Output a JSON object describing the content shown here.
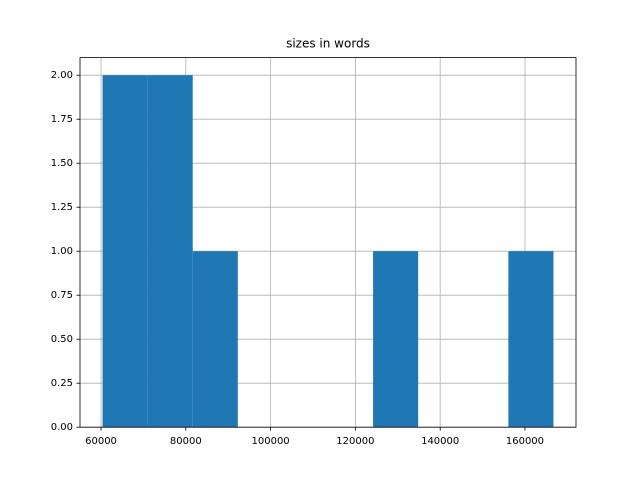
{
  "chart_data": {
    "type": "histogram",
    "title": "sizes in words",
    "bins": [
      60358,
      70994,
      81630,
      92267,
      102903,
      113540,
      124176,
      134812,
      145449,
      156085,
      166722
    ],
    "values": [
      2,
      2,
      1,
      0,
      0,
      0,
      1,
      0,
      0,
      1
    ],
    "color": "#1f77b4",
    "xlim": [
      55040,
      172040
    ],
    "xticks": [
      60000,
      80000,
      100000,
      120000,
      140000,
      160000
    ],
    "ylim": [
      0,
      2.1
    ],
    "yticks": [
      {
        "value": 0,
        "label": "0.00"
      },
      {
        "value": 0.25,
        "label": "0.25"
      },
      {
        "value": 0.5,
        "label": "0.50"
      },
      {
        "value": 0.75,
        "label": "0.75"
      },
      {
        "value": 1,
        "label": "1.00"
      },
      {
        "value": 1.25,
        "label": "1.25"
      },
      {
        "value": 1.5,
        "label": "1.50"
      },
      {
        "value": 1.75,
        "label": "1.75"
      },
      {
        "value": 2,
        "label": "2.00"
      }
    ],
    "grid": true
  }
}
